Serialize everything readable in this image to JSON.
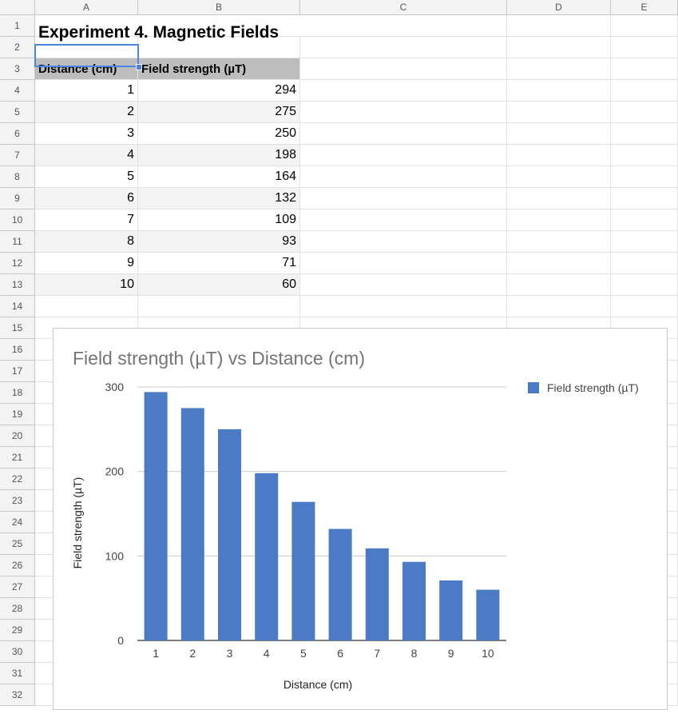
{
  "columns": [
    "A",
    "B",
    "C",
    "D",
    "E"
  ],
  "rows": [
    "1",
    "2",
    "3",
    "4",
    "5",
    "6",
    "7",
    "8",
    "9",
    "10",
    "11",
    "12",
    "13",
    "14",
    "15",
    "16",
    "17",
    "18",
    "19",
    "20",
    "21",
    "22",
    "23",
    "24",
    "25",
    "26",
    "27",
    "28",
    "29",
    "30",
    "31",
    "32"
  ],
  "sheet": {
    "title": "Experiment 4. Magnetic Fields",
    "headers": [
      "Distance (cm)",
      "Field strength (µT)"
    ],
    "data": [
      {
        "distance": "1",
        "field": "294"
      },
      {
        "distance": "2",
        "field": "275"
      },
      {
        "distance": "3",
        "field": "250"
      },
      {
        "distance": "4",
        "field": "198"
      },
      {
        "distance": "5",
        "field": "164"
      },
      {
        "distance": "6",
        "field": "132"
      },
      {
        "distance": "7",
        "field": "109"
      },
      {
        "distance": "8",
        "field": "93"
      },
      {
        "distance": "9",
        "field": "71"
      },
      {
        "distance": "10",
        "field": "60"
      }
    ],
    "selected_cell": "A2"
  },
  "chart_data": {
    "type": "bar",
    "title": "Field strength (µT) vs Distance (cm)",
    "xlabel": "Distance (cm)",
    "ylabel": "Field strength (µT)",
    "categories": [
      "1",
      "2",
      "3",
      "4",
      "5",
      "6",
      "7",
      "8",
      "9",
      "10"
    ],
    "series": [
      {
        "name": "Field strength (µT)",
        "values": [
          294,
          275,
          250,
          198,
          164,
          132,
          109,
          93,
          71,
          60
        ],
        "color": "#4a7bc4"
      }
    ],
    "ylim": [
      0,
      300
    ],
    "yticks": [
      "0",
      "100",
      "200",
      "300"
    ],
    "grid": true,
    "legend": "right"
  },
  "colors": {
    "accent": "#4a86e8",
    "bar": "#4a7bc4",
    "header_bg": "#bdbdbd",
    "band_bg": "#f3f3f3"
  }
}
